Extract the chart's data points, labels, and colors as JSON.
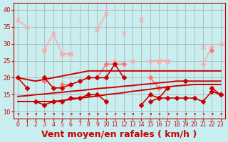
{
  "background_color": "#c8eef0",
  "grid_color": "#aaaaaa",
  "xlabel": "Vent moyen/en rafales ( km/h )",
  "xlabel_color": "#cc0000",
  "xlabel_fontsize": 9,
  "xticks": [
    0,
    1,
    2,
    3,
    4,
    5,
    6,
    7,
    8,
    9,
    10,
    11,
    12,
    13,
    14,
    15,
    16,
    17,
    18,
    19,
    20,
    21,
    22,
    23
  ],
  "yticks": [
    10,
    15,
    20,
    25,
    30,
    35,
    40
  ],
  "ylim": [
    8,
    42
  ],
  "xlim": [
    -0.5,
    23.5
  ],
  "series": [
    {
      "name": "line1_light",
      "color": "#ffaaaa",
      "lw": 1.2,
      "marker": "x",
      "ms": 4,
      "y": [
        37,
        35,
        null,
        28,
        33,
        27,
        27,
        null,
        null,
        34,
        39,
        null,
        33,
        null,
        37,
        null,
        25,
        25,
        null,
        null,
        null,
        29,
        null,
        30
      ]
    },
    {
      "name": "line2_light",
      "color": "#ffaaaa",
      "lw": 1.2,
      "marker": "D",
      "ms": 3,
      "y": [
        null,
        null,
        null,
        28,
        null,
        27,
        27,
        null,
        null,
        null,
        null,
        25,
        null,
        25,
        null,
        25,
        25,
        25,
        null,
        null,
        null,
        24,
        29,
        null
      ]
    },
    {
      "name": "line3_med",
      "color": "#ff7777",
      "lw": 1.2,
      "marker": "D",
      "ms": 3,
      "y": [
        null,
        null,
        null,
        19,
        null,
        18,
        18,
        null,
        null,
        20,
        24,
        24,
        24,
        null,
        null,
        20,
        17,
        17,
        null,
        null,
        null,
        null,
        28,
        null
      ]
    },
    {
      "name": "line4_trend1",
      "color": "#cc0000",
      "lw": 1.4,
      "marker": "",
      "ms": 0,
      "y": [
        13,
        13,
        13,
        13,
        13,
        13.3,
        13.6,
        14,
        14.3,
        14.6,
        15,
        15.3,
        15.6,
        16,
        16.3,
        16.6,
        17,
        17.3,
        17.6,
        17.8,
        18,
        18,
        18,
        18
      ]
    },
    {
      "name": "line5_trend2",
      "color": "#cc0000",
      "lw": 1.4,
      "marker": "",
      "ms": 0,
      "y": [
        14.5,
        14.7,
        15,
        15.2,
        15.5,
        15.7,
        16,
        16.2,
        16.5,
        16.8,
        17,
        17.2,
        17.5,
        17.7,
        18,
        18.2,
        18.5,
        18.7,
        19,
        19,
        19,
        19,
        19,
        19
      ]
    },
    {
      "name": "line6_trend3",
      "color": "#cc0000",
      "lw": 1.4,
      "marker": "",
      "ms": 0,
      "y": [
        20,
        19.5,
        19,
        19.5,
        20,
        20.5,
        21,
        21.5,
        22,
        22,
        22,
        22,
        22,
        22,
        22,
        22,
        22,
        22,
        22,
        22,
        22,
        22,
        22,
        22
      ]
    },
    {
      "name": "line7_dark",
      "color": "#cc0000",
      "lw": 1.2,
      "marker": "D",
      "ms": 3,
      "y": [
        20,
        17,
        null,
        20,
        17,
        17,
        18,
        19,
        20,
        20,
        20,
        24,
        20,
        null,
        12,
        15,
        14,
        17,
        null,
        19,
        null,
        null,
        17,
        15
      ]
    },
    {
      "name": "line8_dark",
      "color": "#cc0000",
      "lw": 1.2,
      "marker": "D",
      "ms": 3,
      "y": [
        null,
        null,
        13,
        12,
        13,
        13,
        14,
        14,
        15,
        15,
        13,
        null,
        null,
        null,
        null,
        13,
        14,
        14,
        14,
        14,
        14,
        13,
        16,
        15
      ]
    }
  ],
  "wind_icon_color": "#cc0000"
}
